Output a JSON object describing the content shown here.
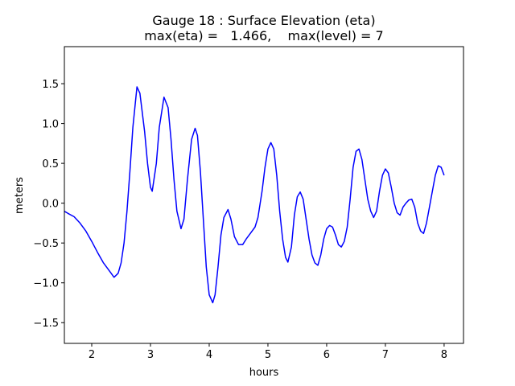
{
  "chart_data": {
    "type": "line",
    "title": [
      "Gauge 18 : Surface Elevation (eta)",
      "max(eta) =   1.466,    max(level) = 7"
    ],
    "xlabel": "hours",
    "ylabel": "meters",
    "xlim": [
      1.534,
      8.33
    ],
    "ylim": [
      -1.76,
      1.965
    ],
    "xticks": [
      2,
      3,
      4,
      5,
      6,
      7,
      8
    ],
    "yticks": [
      {
        "value": -1.5,
        "label": "−1.5"
      },
      {
        "value": -1.0,
        "label": "−1.0"
      },
      {
        "value": -0.5,
        "label": "−0.5"
      },
      {
        "value": 0.0,
        "label": "0.0"
      },
      0.5,
      {
        "value": 1.0,
        "label": "1.0"
      },
      1.5
    ],
    "x": [
      1.53,
      1.6,
      1.7,
      1.8,
      1.9,
      2.0,
      2.1,
      2.2,
      2.3,
      2.38,
      2.45,
      2.5,
      2.55,
      2.6,
      2.65,
      2.7,
      2.77,
      2.82,
      2.9,
      2.95,
      3.0,
      3.03,
      3.1,
      3.15,
      3.23,
      3.3,
      3.35,
      3.4,
      3.45,
      3.52,
      3.57,
      3.63,
      3.7,
      3.76,
      3.8,
      3.85,
      3.9,
      3.95,
      4.0,
      4.06,
      4.1,
      4.15,
      4.2,
      4.25,
      4.32,
      4.37,
      4.43,
      4.5,
      4.57,
      4.63,
      4.7,
      4.78,
      4.83,
      4.9,
      4.95,
      5.0,
      5.05,
      5.1,
      5.15,
      5.2,
      5.25,
      5.3,
      5.34,
      5.4,
      5.45,
      5.5,
      5.55,
      5.6,
      5.65,
      5.7,
      5.75,
      5.8,
      5.85,
      5.9,
      5.95,
      6.0,
      6.05,
      6.1,
      6.15,
      6.2,
      6.25,
      6.3,
      6.35,
      6.4,
      6.45,
      6.5,
      6.55,
      6.6,
      6.65,
      6.7,
      6.75,
      6.8,
      6.85,
      6.9,
      6.95,
      7.0,
      7.05,
      7.1,
      7.15,
      7.2,
      7.25,
      7.3,
      7.35,
      7.4,
      7.45,
      7.5,
      7.55,
      7.6,
      7.65,
      7.7,
      7.75,
      7.8,
      7.85,
      7.9,
      7.95,
      8.0
    ],
    "series": [
      {
        "color": "#0000ff",
        "values": [
          -0.1,
          -0.13,
          -0.17,
          -0.25,
          -0.35,
          -0.48,
          -0.62,
          -0.75,
          -0.85,
          -0.93,
          -0.88,
          -0.75,
          -0.5,
          -0.1,
          0.4,
          0.95,
          1.46,
          1.38,
          0.9,
          0.5,
          0.2,
          0.15,
          0.5,
          0.95,
          1.33,
          1.2,
          0.8,
          0.3,
          -0.1,
          -0.32,
          -0.2,
          0.3,
          0.8,
          0.94,
          0.85,
          0.4,
          -0.2,
          -0.8,
          -1.15,
          -1.25,
          -1.15,
          -0.8,
          -0.4,
          -0.18,
          -0.08,
          -0.2,
          -0.42,
          -0.52,
          -0.52,
          -0.45,
          -0.38,
          -0.3,
          -0.18,
          0.15,
          0.45,
          0.68,
          0.76,
          0.68,
          0.35,
          -0.1,
          -0.45,
          -0.68,
          -0.74,
          -0.55,
          -0.15,
          0.08,
          0.14,
          0.05,
          -0.2,
          -0.45,
          -0.65,
          -0.75,
          -0.78,
          -0.65,
          -0.45,
          -0.32,
          -0.28,
          -0.3,
          -0.4,
          -0.52,
          -0.55,
          -0.48,
          -0.3,
          0.05,
          0.45,
          0.65,
          0.68,
          0.55,
          0.3,
          0.05,
          -0.1,
          -0.18,
          -0.1,
          0.15,
          0.35,
          0.43,
          0.38,
          0.2,
          0.0,
          -0.12,
          -0.15,
          -0.05,
          0.0,
          0.04,
          0.05,
          -0.05,
          -0.25,
          -0.35,
          -0.38,
          -0.25,
          -0.05,
          0.15,
          0.35,
          0.47,
          0.45,
          0.35
        ]
      }
    ]
  }
}
